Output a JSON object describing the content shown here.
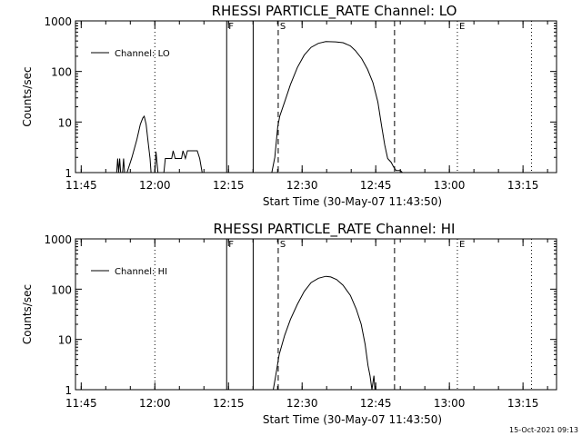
{
  "chart_data": [
    {
      "type": "line",
      "title": "RHESSI PARTICLE_RATE Channel: LO",
      "xlabel": "Start Time (30-May-07 11:43:50)",
      "ylabel": "Counts/sec",
      "yscale": "log",
      "ylim": [
        1,
        1000
      ],
      "xlim_minutes": [
        0,
        98
      ],
      "x_ticks": [
        {
          "t": 1.17,
          "label": "11:45"
        },
        {
          "t": 16.17,
          "label": "12:00"
        },
        {
          "t": 31.17,
          "label": "12:15"
        },
        {
          "t": 46.17,
          "label": "12:30"
        },
        {
          "t": 61.17,
          "label": "12:45"
        },
        {
          "t": 76.17,
          "label": "13:00"
        },
        {
          "t": 91.17,
          "label": "13:15"
        }
      ],
      "y_ticks": [
        {
          "v": 1,
          "label": "1"
        },
        {
          "v": 10,
          "label": "10"
        },
        {
          "v": 100,
          "label": "100"
        },
        {
          "v": 1000,
          "label": "1000"
        }
      ],
      "legend": {
        "label": "Channel: LO",
        "position": "top-left"
      },
      "markers": [
        {
          "t": 16.17,
          "style": "dotted",
          "label": ""
        },
        {
          "t": 30.8,
          "style": "solid",
          "label": "F"
        },
        {
          "t": 36.2,
          "style": "solid",
          "label": ""
        },
        {
          "t": 41.3,
          "style": "dashed",
          "label": "S"
        },
        {
          "t": 65.0,
          "style": "dashed",
          "label": ""
        },
        {
          "t": 77.8,
          "style": "dotted",
          "label": "E"
        },
        {
          "t": 92.9,
          "style": "dotted",
          "label": ""
        }
      ],
      "series": [
        {
          "name": "Channel: LO",
          "segments": [
            [
              [
                8.4,
                1
              ],
              [
                8.6,
                1.9
              ],
              [
                8.8,
                1
              ],
              [
                9.0,
                1.9
              ],
              [
                9.2,
                1
              ],
              [
                9.6,
                1
              ],
              [
                9.8,
                1.9
              ],
              [
                10.0,
                1
              ],
              [
                10.5,
                1
              ],
              [
                11.5,
                2
              ],
              [
                12.5,
                4.5
              ],
              [
                13.2,
                9
              ],
              [
                13.7,
                12
              ],
              [
                14.0,
                13
              ],
              [
                14.4,
                9
              ],
              [
                14.8,
                4
              ],
              [
                15.2,
                1.9
              ],
              [
                15.4,
                1
              ],
              [
                16.2,
                1
              ],
              [
                16.4,
                2.6
              ],
              [
                16.8,
                1
              ],
              [
                17.0,
                1
              ]
            ],
            [
              [
                18.0,
                1
              ],
              [
                18.3,
                1.9
              ],
              [
                19.6,
                1.9
              ],
              [
                19.9,
                2.7
              ],
              [
                20.3,
                1.9
              ],
              [
                21.6,
                1.9
              ],
              [
                21.9,
                2.7
              ],
              [
                22.4,
                1.9
              ],
              [
                22.8,
                2.7
              ],
              [
                24.8,
                2.7
              ],
              [
                25.3,
                1.9
              ],
              [
                25.8,
                1
              ]
            ],
            [
              [
                40.0,
                1
              ],
              [
                40.6,
                2
              ],
              [
                41.2,
                8
              ],
              [
                41.6,
                13
              ],
              [
                42.6,
                25
              ],
              [
                43.8,
                55
              ],
              [
                45.2,
                120
              ],
              [
                46.6,
                210
              ],
              [
                48.0,
                300
              ],
              [
                49.5,
                360
              ],
              [
                51.0,
                390
              ],
              [
                53.0,
                385
              ],
              [
                54.5,
                370
              ],
              [
                56.0,
                320
              ],
              [
                57.0,
                260
              ],
              [
                58.3,
                180
              ],
              [
                59.5,
                110
              ],
              [
                60.6,
                60
              ],
              [
                61.6,
                25
              ],
              [
                62.4,
                8
              ],
              [
                63.0,
                3.5
              ],
              [
                63.6,
                1.9
              ],
              [
                64.3,
                1.6
              ],
              [
                64.8,
                1.3
              ],
              [
                65.3,
                1.1
              ],
              [
                66.2,
                1.1
              ],
              [
                66.6,
                1
              ]
            ]
          ]
        }
      ]
    },
    {
      "type": "line",
      "title": "RHESSI PARTICLE_RATE Channel: HI",
      "xlabel": "Start Time (30-May-07 11:43:50)",
      "ylabel": "Counts/sec",
      "yscale": "log",
      "ylim": [
        1,
        1000
      ],
      "xlim_minutes": [
        0,
        98
      ],
      "x_ticks": [
        {
          "t": 1.17,
          "label": "11:45"
        },
        {
          "t": 16.17,
          "label": "12:00"
        },
        {
          "t": 31.17,
          "label": "12:15"
        },
        {
          "t": 46.17,
          "label": "12:30"
        },
        {
          "t": 61.17,
          "label": "12:45"
        },
        {
          "t": 76.17,
          "label": "13:00"
        },
        {
          "t": 91.17,
          "label": "13:15"
        }
      ],
      "y_ticks": [
        {
          "v": 1,
          "label": "1"
        },
        {
          "v": 10,
          "label": "10"
        },
        {
          "v": 100,
          "label": "100"
        },
        {
          "v": 1000,
          "label": "1000"
        }
      ],
      "legend": {
        "label": "Channel: HI",
        "position": "top-left"
      },
      "markers": [
        {
          "t": 16.17,
          "style": "dotted",
          "label": ""
        },
        {
          "t": 30.8,
          "style": "solid",
          "label": "F"
        },
        {
          "t": 36.2,
          "style": "solid",
          "label": ""
        },
        {
          "t": 41.3,
          "style": "dashed",
          "label": "S"
        },
        {
          "t": 65.0,
          "style": "dashed",
          "label": ""
        },
        {
          "t": 77.8,
          "style": "dotted",
          "label": "E"
        },
        {
          "t": 92.9,
          "style": "dotted",
          "label": ""
        }
      ],
      "series": [
        {
          "name": "Channel: HI",
          "segments": [
            [
              [
                40.3,
                1
              ],
              [
                40.8,
                1.9
              ],
              [
                41.5,
                5
              ],
              [
                42.6,
                12
              ],
              [
                43.8,
                25
              ],
              [
                45.2,
                50
              ],
              [
                46.6,
                90
              ],
              [
                48.0,
                135
              ],
              [
                49.5,
                165
              ],
              [
                51.0,
                180
              ],
              [
                52.0,
                175
              ],
              [
                53.2,
                155
              ],
              [
                54.5,
                120
              ],
              [
                56.0,
                75
              ],
              [
                57.2,
                40
              ],
              [
                58.2,
                20
              ],
              [
                59.0,
                8
              ],
              [
                59.6,
                3
              ],
              [
                60.0,
                1.9
              ],
              [
                60.4,
                1
              ],
              [
                60.8,
                1.9
              ],
              [
                61.0,
                1
              ]
            ]
          ]
        }
      ]
    }
  ],
  "footer": {
    "timestamp": "15-Oct-2021 09:13"
  }
}
